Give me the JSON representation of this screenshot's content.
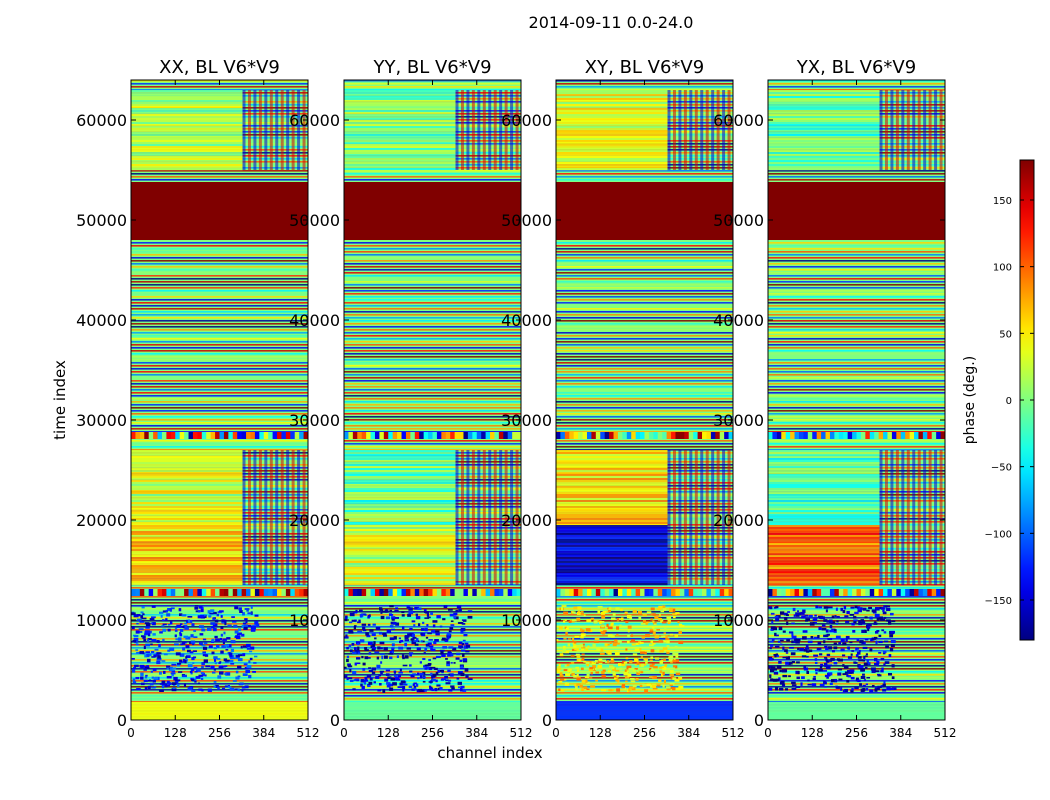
{
  "figure": {
    "suptitle": "2014-09-11 0.0-24.0",
    "xlabel": "channel index",
    "ylabel": "time index"
  },
  "colorbar": {
    "label": "phase (deg.)",
    "ticks": [
      150,
      100,
      50,
      0,
      -50,
      -100,
      -150
    ],
    "tick_labels": [
      "150",
      "100",
      "50",
      "0",
      "−50",
      "−100",
      "−150"
    ],
    "range": [
      -180,
      180
    ],
    "colormap": "jet"
  },
  "chart_data": [
    {
      "type": "heatmap",
      "title": "XX, BL V6*V9",
      "x_range": [
        0,
        512
      ],
      "y_range": [
        0,
        64000
      ],
      "x_ticks": [
        0,
        128,
        256,
        384,
        512
      ],
      "y_ticks": [
        0,
        10000,
        20000,
        30000,
        40000,
        50000,
        60000
      ],
      "value": "phase (deg.)",
      "saturated_band": {
        "y_from": 48000,
        "y_to": 53800,
        "phase": 180
      },
      "features": {
        "low_band_color_deg": 30,
        "mid_band_color_deg": 60,
        "bottom_band_color_deg": 40,
        "noise_blob_deg": -130
      }
    },
    {
      "type": "heatmap",
      "title": "YY, BL V6*V9",
      "x_range": [
        0,
        512
      ],
      "y_range": [
        0,
        64000
      ],
      "x_ticks": [
        0,
        128,
        256,
        384,
        512
      ],
      "y_ticks": [
        0,
        10000,
        20000,
        30000,
        40000,
        50000,
        60000
      ],
      "value": "phase (deg.)",
      "saturated_band": {
        "y_from": 48000,
        "y_to": 53800,
        "phase": 180
      },
      "features": {
        "low_band_color_deg": -10,
        "mid_band_color_deg": 30,
        "bottom_band_color_deg": -10,
        "noise_blob_deg": -150
      }
    },
    {
      "type": "heatmap",
      "title": "XY, BL V6*V9",
      "x_range": [
        0,
        512
      ],
      "y_range": [
        0,
        64000
      ],
      "x_ticks": [
        0,
        128,
        256,
        384,
        512
      ],
      "y_ticks": [
        0,
        10000,
        20000,
        30000,
        40000,
        50000,
        60000
      ],
      "value": "phase (deg.)",
      "saturated_band": {
        "y_from": 48000,
        "y_to": 53800,
        "phase": 180
      },
      "features": {
        "low_band_color_deg": 60,
        "mid_band_color_deg": -150,
        "bottom_band_color_deg": -120,
        "noise_blob_deg": 60
      }
    },
    {
      "type": "heatmap",
      "title": "YX, BL V6*V9",
      "x_range": [
        0,
        512
      ],
      "y_range": [
        0,
        64000
      ],
      "x_ticks": [
        0,
        128,
        256,
        384,
        512
      ],
      "y_ticks": [
        0,
        10000,
        20000,
        30000,
        40000,
        50000,
        60000
      ],
      "value": "phase (deg.)",
      "saturated_band": {
        "y_from": 48000,
        "y_to": 53800,
        "phase": 180
      },
      "features": {
        "low_band_color_deg": -20,
        "mid_band_color_deg": 100,
        "bottom_band_color_deg": -10,
        "noise_blob_deg": -160
      }
    }
  ]
}
